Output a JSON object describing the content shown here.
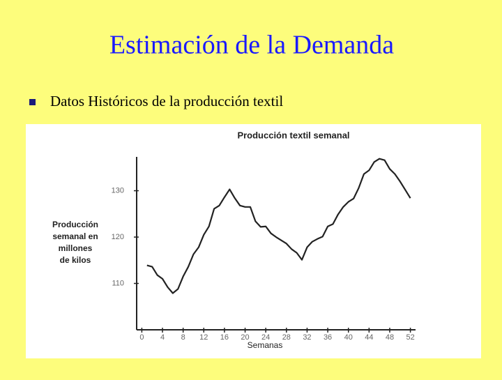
{
  "slide": {
    "title": "Estimación de la Demanda",
    "bullet": "Datos Históricos de la producción textil"
  },
  "chart_data": {
    "type": "line",
    "title": "Producción textil semanal",
    "y_label_lines": [
      "Producción",
      "semanal en",
      "millones",
      "de kilos"
    ],
    "x_label": "Semanas",
    "x": [
      1,
      2,
      3,
      4,
      5,
      6,
      7,
      8,
      9,
      10,
      11,
      12,
      13,
      14,
      15,
      16,
      17,
      18,
      19,
      20,
      21,
      22,
      23,
      24,
      25,
      26,
      27,
      28,
      29,
      30,
      31,
      32,
      33,
      34,
      35,
      36,
      37,
      38,
      39,
      40,
      41,
      42,
      43,
      44,
      45,
      46,
      47,
      48,
      49,
      50,
      51,
      52
    ],
    "series": [
      {
        "name": "Producción",
        "color": "#222222",
        "values": [
          113.9,
          113.6,
          111.8,
          111,
          109.2,
          107.9,
          108.8,
          111.5,
          113.6,
          116.3,
          117.8,
          120.5,
          122.3,
          126.1,
          126.8,
          128.6,
          130.3,
          128.4,
          126.8,
          126.5,
          126.5,
          123.4,
          122.2,
          122.3,
          120.8,
          120,
          119.3,
          118.6,
          117.4,
          116.6,
          115.1,
          117.8,
          119,
          119.6,
          120.1,
          122.3,
          122.8,
          124.9,
          126.5,
          127.6,
          128.3,
          130.6,
          133.6,
          134.4,
          136.2,
          136.9,
          136.6,
          134.7,
          133.6,
          132,
          130.2,
          128.4
        ]
      }
    ],
    "xlim": [
      -1,
      53
    ],
    "xticks": [
      0,
      4,
      8,
      12,
      16,
      20,
      24,
      28,
      32,
      36,
      40,
      44,
      48,
      52
    ],
    "ylim": [
      100,
      137.3
    ],
    "yticks": [
      110,
      120,
      130
    ]
  }
}
